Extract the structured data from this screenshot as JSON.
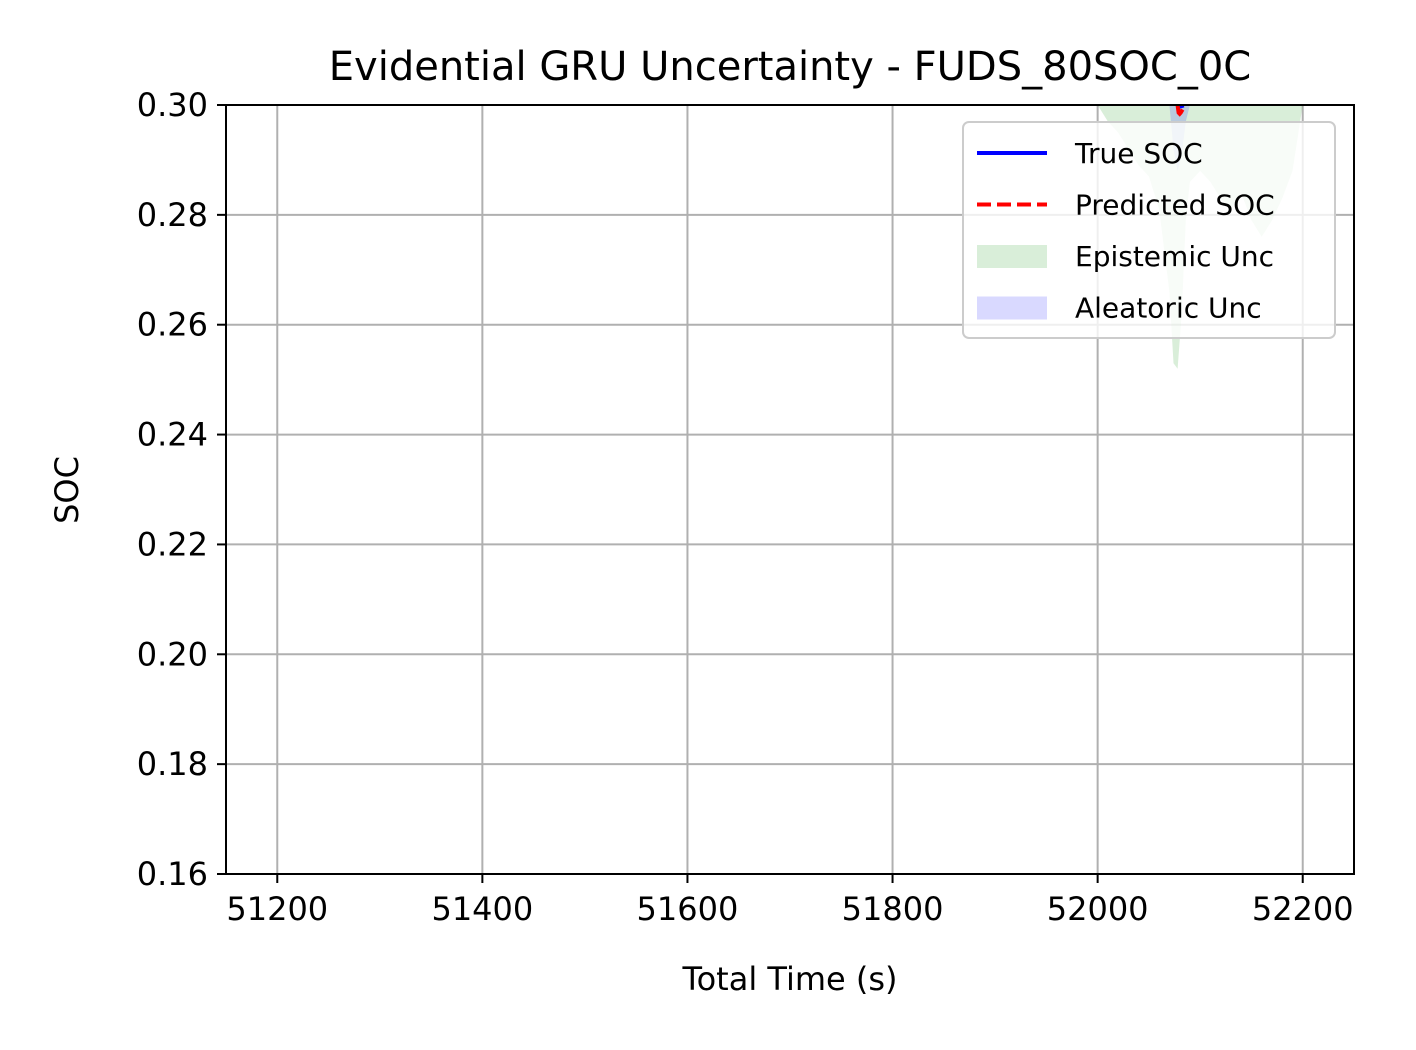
{
  "chart_data": {
    "type": "line",
    "title": "Evidential GRU Uncertainty - FUDS_80SOC_0C",
    "xlabel": "Total Time (s)",
    "ylabel": "SOC",
    "xlim": [
      51150,
      52250
    ],
    "ylim": [
      0.16,
      0.3
    ],
    "xticks": [
      51200,
      51400,
      51600,
      51800,
      52000,
      52200
    ],
    "xtick_labels": [
      "51200",
      "51400",
      "51600",
      "51800",
      "52000",
      "52200"
    ],
    "yticks": [
      0.16,
      0.18,
      0.2,
      0.22,
      0.24,
      0.26,
      0.28,
      0.3
    ],
    "ytick_labels": [
      "0.16",
      "0.18",
      "0.20",
      "0.22",
      "0.24",
      "0.26",
      "0.28",
      "0.30"
    ],
    "grid": true,
    "legend_position": "top-right",
    "series": [
      {
        "name": "True SOC",
        "kind": "line",
        "style": "solid",
        "color": "#0000ff",
        "x": [
          52078,
          52080,
          52082,
          52084
        ],
        "y": [
          0.2998,
          0.2997,
          0.2998,
          0.2999
        ]
      },
      {
        "name": "Predicted SOC",
        "kind": "line",
        "style": "dashed",
        "color": "#ff0000",
        "x": [
          52078,
          52079,
          52080,
          52081,
          52082,
          52083,
          52084
        ],
        "y": [
          0.2999,
          0.2986,
          0.2984,
          0.2986,
          0.2989,
          0.2992,
          0.2997
        ]
      },
      {
        "name": "Epistemic Unc",
        "kind": "band",
        "color": "#2ca02c",
        "opacity": 0.18,
        "x": [
          52000,
          52010,
          52020,
          52030,
          52040,
          52050,
          52060,
          52070,
          52074,
          52078,
          52082,
          52086,
          52090,
          52100,
          52110,
          52120,
          52130,
          52140,
          52150,
          52160,
          52170,
          52180,
          52190,
          52200
        ],
        "lower": [
          0.3,
          0.297,
          0.295,
          0.292,
          0.289,
          0.287,
          0.281,
          0.266,
          0.253,
          0.252,
          0.262,
          0.279,
          0.286,
          0.288,
          0.286,
          0.283,
          0.281,
          0.284,
          0.279,
          0.276,
          0.279,
          0.283,
          0.288,
          0.3
        ],
        "upper": [
          0.3,
          0.3,
          0.3,
          0.3,
          0.3,
          0.3,
          0.3,
          0.3,
          0.3,
          0.3,
          0.3,
          0.3,
          0.3,
          0.3,
          0.3,
          0.3,
          0.3,
          0.3,
          0.3,
          0.3,
          0.3,
          0.3,
          0.3,
          0.3
        ]
      },
      {
        "name": "Aleatoric Unc",
        "kind": "band",
        "color": "#0000ff",
        "opacity": 0.15,
        "x": [
          52070,
          52074,
          52078,
          52082,
          52086,
          52090
        ],
        "lower": [
          0.3,
          0.292,
          0.288,
          0.291,
          0.297,
          0.3
        ],
        "upper": [
          0.3,
          0.3,
          0.3,
          0.3,
          0.3,
          0.3
        ]
      }
    ]
  }
}
